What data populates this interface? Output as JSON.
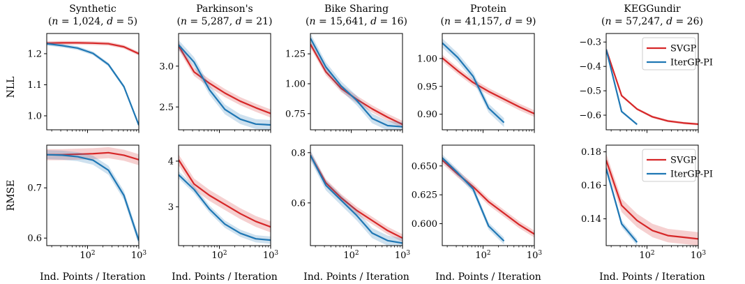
{
  "figure": {
    "row_labels": [
      "NLL",
      "RMSE"
    ],
    "xlabel": "Ind. Points / Iteration",
    "legend": [
      "SVGP",
      "IterGP-PI"
    ]
  },
  "colors": {
    "SVGP": "#d62728",
    "IterGP-PI": "#1f77b4"
  },
  "chart_data": [
    {
      "type": "line",
      "title": "Synthetic",
      "subtitle": "(n = 1,024, d = 5)",
      "metric": "NLL",
      "xscale": "log",
      "xlim": [
        16,
        1000
      ],
      "ylim": [
        0.955,
        1.265
      ],
      "yticks": [
        1.0,
        1.1,
        1.2
      ],
      "ytick_labels": [
        "1.0",
        "1.1",
        "1.2"
      ],
      "xticks": [
        100,
        1000
      ],
      "xtick_labels": [
        "10^2",
        "10^3"
      ],
      "legend": false,
      "series": [
        {
          "name": "SVGP",
          "x": [
            16,
            32,
            64,
            128,
            256,
            512,
            1000
          ],
          "y": [
            1.234,
            1.235,
            1.235,
            1.234,
            1.232,
            1.222,
            1.2
          ],
          "band": 0.006
        },
        {
          "name": "IterGP-PI",
          "x": [
            16,
            32,
            64,
            128,
            256,
            512,
            1000
          ],
          "y": [
            1.232,
            1.226,
            1.218,
            1.201,
            1.165,
            1.094,
            0.97
          ],
          "band": 0.006
        }
      ]
    },
    {
      "type": "line",
      "title": "Parkinson's",
      "subtitle": "(n = 5,287, d = 21)",
      "metric": "NLL",
      "xscale": "log",
      "xlim": [
        16,
        1000
      ],
      "ylim": [
        2.22,
        3.4
      ],
      "yticks": [
        2.5,
        3.0
      ],
      "ytick_labels": [
        "2.5",
        "3.0"
      ],
      "xticks": [
        100,
        1000
      ],
      "xtick_labels": [
        "10^2",
        "10^3"
      ],
      "legend": false,
      "series": [
        {
          "name": "SVGP",
          "x": [
            16,
            32,
            64,
            128,
            256,
            512,
            1000
          ],
          "y": [
            3.25,
            2.93,
            2.79,
            2.67,
            2.57,
            2.49,
            2.42
          ],
          "band": 0.05
        },
        {
          "name": "IterGP-PI",
          "x": [
            16,
            32,
            64,
            128,
            256,
            512,
            1000
          ],
          "y": [
            3.26,
            3.05,
            2.71,
            2.47,
            2.35,
            2.29,
            2.28
          ],
          "band": 0.06
        }
      ]
    },
    {
      "type": "line",
      "title": "Bike Sharing",
      "subtitle": "(n = 15,641, d = 16)",
      "metric": "NLL",
      "xscale": "log",
      "xlim": [
        16,
        1000
      ],
      "ylim": [
        0.615,
        1.42
      ],
      "yticks": [
        0.75,
        1.0,
        1.25
      ],
      "ytick_labels": [
        "0.75",
        "1.00",
        "1.25"
      ],
      "xticks": [
        100,
        1000
      ],
      "xtick_labels": [
        "10^2",
        "10^3"
      ],
      "legend": false,
      "series": [
        {
          "name": "SVGP",
          "x": [
            16,
            32,
            64,
            128,
            256,
            512,
            1000
          ],
          "y": [
            1.33,
            1.1,
            0.96,
            0.87,
            0.79,
            0.72,
            0.66
          ],
          "band": 0.03
        },
        {
          "name": "IterGP-PI",
          "x": [
            16,
            32,
            64,
            128,
            256,
            512,
            1000
          ],
          "y": [
            1.38,
            1.14,
            0.98,
            0.86,
            0.71,
            0.65,
            0.64
          ],
          "band": 0.04
        }
      ]
    },
    {
      "type": "line",
      "title": "Protein",
      "subtitle": "(n = 41,157, d = 9)",
      "metric": "NLL",
      "xscale": "log",
      "xlim": [
        16,
        1000
      ],
      "ylim": [
        0.872,
        1.045
      ],
      "yticks": [
        0.9,
        0.95,
        1.0
      ],
      "ytick_labels": [
        "0.90",
        "0.95",
        "1.00"
      ],
      "xticks": [
        100,
        1000
      ],
      "xtick_labels": [
        "10^2",
        "10^3"
      ],
      "legend": false,
      "series": [
        {
          "name": "SVGP",
          "x": [
            16,
            32,
            64,
            128,
            256,
            512,
            1000
          ],
          "y": [
            1.001,
            0.978,
            0.957,
            0.941,
            0.927,
            0.913,
            0.901
          ],
          "band": 0.006
        },
        {
          "name": "IterGP-PI",
          "x": [
            16,
            32,
            64,
            128,
            256
          ],
          "y": [
            1.028,
            1.002,
            0.968,
            0.911,
            0.885
          ],
          "band": 0.008
        }
      ]
    },
    {
      "type": "line",
      "title": "KEGGundir",
      "subtitle": "(n = 57,247, d = 26)",
      "metric": "NLL",
      "xscale": "log",
      "xlim": [
        16,
        1000
      ],
      "ylim": [
        -0.66,
        -0.265
      ],
      "yticks": [
        -0.6,
        -0.5,
        -0.4,
        -0.3
      ],
      "ytick_labels": [
        "−0.6",
        "−0.5",
        "−0.4",
        "−0.3"
      ],
      "xticks": [
        100,
        1000
      ],
      "xtick_labels": [
        "10^2",
        "10^3"
      ],
      "legend": true,
      "series": [
        {
          "name": "SVGP",
          "x": [
            16,
            32,
            64,
            128,
            256,
            512,
            1000
          ],
          "y": [
            -0.33,
            -0.52,
            -0.575,
            -0.607,
            -0.624,
            -0.632,
            -0.637
          ],
          "band": 0.005
        },
        {
          "name": "IterGP-PI",
          "x": [
            16,
            32,
            64
          ],
          "y": [
            -0.33,
            -0.585,
            -0.638
          ],
          "band": 0.005
        }
      ]
    },
    {
      "type": "line",
      "title": "",
      "subtitle": "",
      "metric": "RMSE",
      "xscale": "log",
      "xlim": [
        16,
        1000
      ],
      "ylim": [
        0.585,
        0.785
      ],
      "yticks": [
        0.6,
        0.7
      ],
      "ytick_labels": [
        "0.6",
        "0.7"
      ],
      "xticks": [
        100,
        1000
      ],
      "xtick_labels": [
        "10^2",
        "10^3"
      ],
      "legend": false,
      "series": [
        {
          "name": "SVGP",
          "x": [
            16,
            32,
            64,
            128,
            256,
            512,
            1000
          ],
          "y": [
            0.766,
            0.766,
            0.767,
            0.768,
            0.77,
            0.765,
            0.756
          ],
          "band": 0.011
        },
        {
          "name": "IterGP-PI",
          "x": [
            16,
            32,
            64,
            128,
            256,
            512,
            1000
          ],
          "y": [
            0.766,
            0.765,
            0.762,
            0.755,
            0.735,
            0.685,
            0.595
          ],
          "band": 0.009
        }
      ]
    },
    {
      "type": "line",
      "title": "",
      "subtitle": "",
      "metric": "RMSE",
      "xscale": "log",
      "xlim": [
        16,
        1000
      ],
      "ylim": [
        2.15,
        4.35
      ],
      "yticks": [
        3,
        4
      ],
      "ytick_labels": [
        "3",
        "4"
      ],
      "xticks": [
        100,
        1000
      ],
      "xtick_labels": [
        "10^2",
        "10^3"
      ],
      "legend": false,
      "series": [
        {
          "name": "SVGP",
          "x": [
            16,
            32,
            64,
            128,
            256,
            512,
            1000
          ],
          "y": [
            4.03,
            3.5,
            3.25,
            3.05,
            2.85,
            2.68,
            2.56
          ],
          "band": 0.12
        },
        {
          "name": "IterGP-PI",
          "x": [
            16,
            32,
            64,
            128,
            256,
            512,
            1000
          ],
          "y": [
            3.7,
            3.38,
            2.95,
            2.62,
            2.42,
            2.3,
            2.27
          ],
          "band": 0.08
        }
      ]
    },
    {
      "type": "line",
      "title": "",
      "subtitle": "",
      "metric": "RMSE",
      "xscale": "log",
      "xlim": [
        16,
        1000
      ],
      "ylim": [
        0.43,
        0.83
      ],
      "yticks": [
        0.6,
        0.8
      ],
      "ytick_labels": [
        "0.6",
        "0.8"
      ],
      "xticks": [
        100,
        1000
      ],
      "xtick_labels": [
        "10^2",
        "10^3"
      ],
      "legend": false,
      "series": [
        {
          "name": "SVGP",
          "x": [
            16,
            32,
            64,
            128,
            256,
            512,
            1000
          ],
          "y": [
            0.79,
            0.68,
            0.62,
            0.57,
            0.53,
            0.49,
            0.46
          ],
          "band": 0.015
        },
        {
          "name": "IterGP-PI",
          "x": [
            16,
            32,
            64,
            128,
            256,
            512,
            1000
          ],
          "y": [
            0.79,
            0.67,
            0.61,
            0.55,
            0.48,
            0.45,
            0.44
          ],
          "band": 0.02
        }
      ]
    },
    {
      "type": "line",
      "title": "",
      "subtitle": "",
      "metric": "RMSE",
      "xscale": "log",
      "xlim": [
        16,
        1000
      ],
      "ylim": [
        0.581,
        0.668
      ],
      "yticks": [
        0.6,
        0.625,
        0.65
      ],
      "ytick_labels": [
        "0.600",
        "0.625",
        "0.650"
      ],
      "xticks": [
        100,
        1000
      ],
      "xtick_labels": [
        "10^2",
        "10^3"
      ],
      "legend": false,
      "series": [
        {
          "name": "SVGP",
          "x": [
            16,
            32,
            64,
            128,
            256,
            512,
            1000
          ],
          "y": [
            0.655,
            0.643,
            0.632,
            0.619,
            0.609,
            0.599,
            0.591
          ],
          "band": 0.003
        },
        {
          "name": "IterGP-PI",
          "x": [
            16,
            32,
            64,
            128,
            256
          ],
          "y": [
            0.657,
            0.644,
            0.63,
            0.598,
            0.585
          ],
          "band": 0.003
        }
      ]
    },
    {
      "type": "line",
      "title": "",
      "subtitle": "",
      "metric": "RMSE",
      "xscale": "log",
      "xlim": [
        16,
        1000
      ],
      "ylim": [
        0.124,
        0.184
      ],
      "yticks": [
        0.14,
        0.16,
        0.18
      ],
      "ytick_labels": [
        "0.14",
        "0.16",
        "0.18"
      ],
      "xticks": [
        100,
        1000
      ],
      "xtick_labels": [
        "10^2",
        "10^3"
      ],
      "legend": true,
      "series": [
        {
          "name": "SVGP",
          "x": [
            16,
            32,
            64,
            128,
            256,
            512,
            1000
          ],
          "y": [
            0.175,
            0.148,
            0.139,
            0.133,
            0.13,
            0.129,
            0.128
          ],
          "band": 0.004
        },
        {
          "name": "IterGP-PI",
          "x": [
            16,
            32,
            64
          ],
          "y": [
            0.17,
            0.137,
            0.126
          ],
          "band": 0.002
        }
      ]
    }
  ]
}
